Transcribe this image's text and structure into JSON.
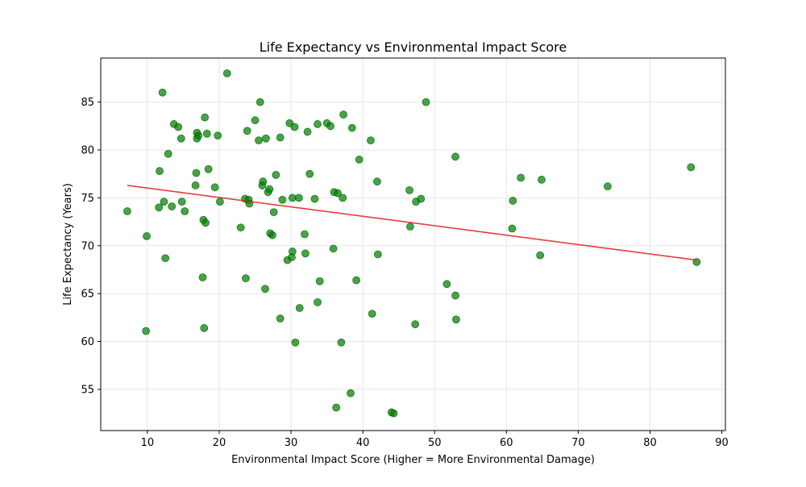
{
  "chart_data": {
    "type": "scatter",
    "title": "Life Expectancy vs Environmental Impact Score",
    "xlabel": "Environmental Impact Score (Higher = More Environmental Damage)",
    "ylabel": "Life Expectancy (Years)",
    "xlim": [
      3.5,
      90.5
    ],
    "ylim": [
      50.7,
      89.6
    ],
    "xticks": [
      10,
      20,
      30,
      40,
      50,
      60,
      70,
      80,
      90
    ],
    "yticks": [
      55,
      60,
      65,
      70,
      75,
      80,
      85
    ],
    "grid": true,
    "point_color": "#008000",
    "trendline_color": "#e41a1c",
    "trendline": {
      "x": [
        7.2,
        86.5
      ],
      "y": [
        76.3,
        68.5
      ]
    },
    "points": [
      [
        7.2,
        73.6
      ],
      [
        9.8,
        61.1
      ],
      [
        9.9,
        71.0
      ],
      [
        11.6,
        74.0
      ],
      [
        11.7,
        77.8
      ],
      [
        12.1,
        86.0
      ],
      [
        12.3,
        74.6
      ],
      [
        12.5,
        68.7
      ],
      [
        12.9,
        79.6
      ],
      [
        13.4,
        74.1
      ],
      [
        13.7,
        82.7
      ],
      [
        14.3,
        82.4
      ],
      [
        14.7,
        81.2
      ],
      [
        14.8,
        74.6
      ],
      [
        15.2,
        73.6
      ],
      [
        16.7,
        76.3
      ],
      [
        16.8,
        77.6
      ],
      [
        16.9,
        81.8
      ],
      [
        16.9,
        81.2
      ],
      [
        17.1,
        81.5
      ],
      [
        17.7,
        66.7
      ],
      [
        17.8,
        72.7
      ],
      [
        17.9,
        61.4
      ],
      [
        18.0,
        83.4
      ],
      [
        18.1,
        72.4
      ],
      [
        18.3,
        81.7
      ],
      [
        18.5,
        78.0
      ],
      [
        19.4,
        76.1
      ],
      [
        19.8,
        81.5
      ],
      [
        20.1,
        74.6
      ],
      [
        21.1,
        88.0
      ],
      [
        23.0,
        71.9
      ],
      [
        23.6,
        74.9
      ],
      [
        23.7,
        66.6
      ],
      [
        23.9,
        82.0
      ],
      [
        24.1,
        74.8
      ],
      [
        24.2,
        74.4
      ],
      [
        25.0,
        83.1
      ],
      [
        25.5,
        81.0
      ],
      [
        25.7,
        85.0
      ],
      [
        26.0,
        76.3
      ],
      [
        26.1,
        76.7
      ],
      [
        26.4,
        65.5
      ],
      [
        26.5,
        81.2
      ],
      [
        26.8,
        75.6
      ],
      [
        27.0,
        75.9
      ],
      [
        27.1,
        71.3
      ],
      [
        27.4,
        71.1
      ],
      [
        27.6,
        73.5
      ],
      [
        27.9,
        77.4
      ],
      [
        28.5,
        62.4
      ],
      [
        28.5,
        81.3
      ],
      [
        28.8,
        74.8
      ],
      [
        29.5,
        68.5
      ],
      [
        29.8,
        82.8
      ],
      [
        30.1,
        68.8
      ],
      [
        30.2,
        69.4
      ],
      [
        30.2,
        75.0
      ],
      [
        30.5,
        82.4
      ],
      [
        30.6,
        59.9
      ],
      [
        31.1,
        75.0
      ],
      [
        31.2,
        63.5
      ],
      [
        31.9,
        71.2
      ],
      [
        32.0,
        69.2
      ],
      [
        32.3,
        81.9
      ],
      [
        32.6,
        77.5
      ],
      [
        33.3,
        74.9
      ],
      [
        33.7,
        64.1
      ],
      [
        33.7,
        82.7
      ],
      [
        34.0,
        66.3
      ],
      [
        35.0,
        82.8
      ],
      [
        35.5,
        82.5
      ],
      [
        35.9,
        69.7
      ],
      [
        36.0,
        75.6
      ],
      [
        36.3,
        53.1
      ],
      [
        36.5,
        75.5
      ],
      [
        37.0,
        59.9
      ],
      [
        37.2,
        75.0
      ],
      [
        37.3,
        83.7
      ],
      [
        38.3,
        54.6
      ],
      [
        38.5,
        82.3
      ],
      [
        39.1,
        66.4
      ],
      [
        39.5,
        79.0
      ],
      [
        41.1,
        81.0
      ],
      [
        41.3,
        62.9
      ],
      [
        42.0,
        76.7
      ],
      [
        42.1,
        69.1
      ],
      [
        44.0,
        52.6
      ],
      [
        44.3,
        52.5
      ],
      [
        46.5,
        75.8
      ],
      [
        46.6,
        72.0
      ],
      [
        47.3,
        61.8
      ],
      [
        47.4,
        74.6
      ],
      [
        48.1,
        74.9
      ],
      [
        48.8,
        85.0
      ],
      [
        51.7,
        66.0
      ],
      [
        52.9,
        64.8
      ],
      [
        52.9,
        79.3
      ],
      [
        53.0,
        62.3
      ],
      [
        60.8,
        71.8
      ],
      [
        60.9,
        74.7
      ],
      [
        62.0,
        77.1
      ],
      [
        64.7,
        69.0
      ],
      [
        64.9,
        76.9
      ],
      [
        74.1,
        76.2
      ],
      [
        85.7,
        78.2
      ],
      [
        86.5,
        68.3
      ]
    ]
  }
}
